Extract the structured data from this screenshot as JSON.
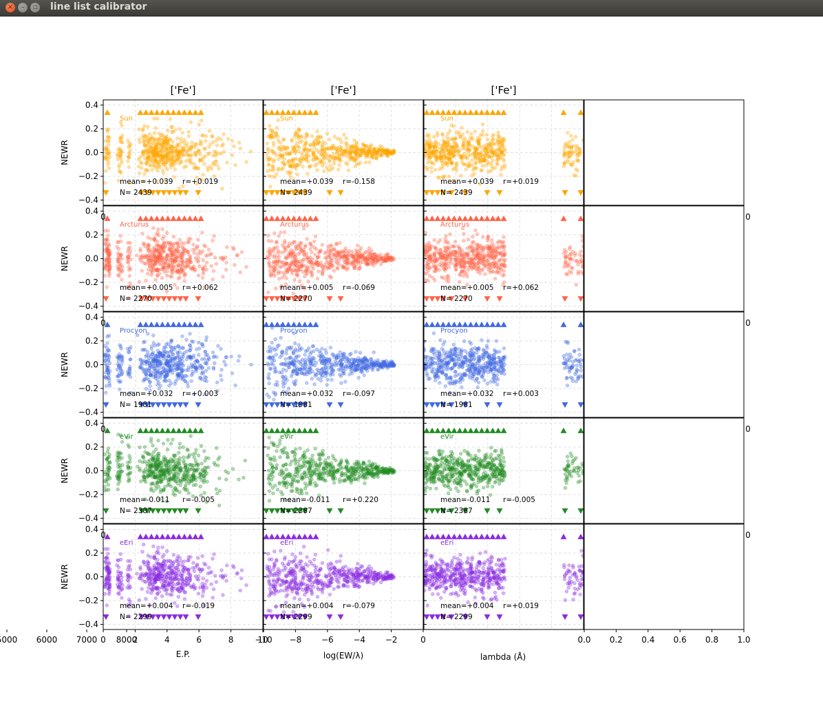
{
  "window": {
    "title": "line list calibrator",
    "close_glyph": "×",
    "min_glyph": "–",
    "max_glyph": "▫"
  },
  "columns": [
    {
      "title": "['Fe']",
      "xlabel": "E.P."
    },
    {
      "title": "['Fe']",
      "xlabel": "log(EW/λ)"
    },
    {
      "title": "['Fe']",
      "xlabel": "lambda (Å)"
    },
    {
      "title": "",
      "xlabel": ""
    }
  ],
  "ylabel": "NEWR",
  "x_ticks": {
    "ep": [
      "0",
      "2",
      "4",
      "6",
      "8",
      "10"
    ],
    "logew": [
      "−10",
      "−8",
      "−6",
      "−4",
      "−2",
      "0"
    ],
    "lambda": [
      "5000",
      "6000",
      "7000",
      "8000"
    ],
    "blank": [
      "0.0",
      "0.2",
      "0.4",
      "0.6",
      "0.8",
      "1.0"
    ]
  },
  "y_ticks": [
    "0.4",
    "0.2",
    "0.0",
    "−0.2",
    "−0.4"
  ],
  "stars": [
    {
      "name": "Sun",
      "color": "#ffa500",
      "stats": [
        {
          "mean": "mean=+0.039",
          "r": "r=+0.019",
          "n": "N= 2439"
        },
        {
          "mean": "mean=+0.039",
          "r": "r=-0.158",
          "n": "N= 2439"
        },
        {
          "mean": "mean=+0.039",
          "r": "r=+0.019",
          "n": "N= 2439"
        }
      ]
    },
    {
      "name": "Arcturus",
      "color": "#ff6347",
      "stats": [
        {
          "mean": "mean=+0.005",
          "r": "r=+0.062",
          "n": "N= 2270"
        },
        {
          "mean": "mean=+0.005",
          "r": "r=-0.069",
          "n": "N= 2270"
        },
        {
          "mean": "mean=+0.005",
          "r": "r=+0.062",
          "n": "N= 2270"
        }
      ]
    },
    {
      "name": "Procyon",
      "color": "#4169e1",
      "stats": [
        {
          "mean": "mean=+0.032",
          "r": "r=+0.003",
          "n": "N= 1981"
        },
        {
          "mean": "mean=+0.032",
          "r": "r=-0.097",
          "n": "N= 1981"
        },
        {
          "mean": "mean=+0.032",
          "r": "r=+0.003",
          "n": "N= 1981"
        }
      ]
    },
    {
      "name": "eVir",
      "color": "#228b22",
      "stats": [
        {
          "mean": "mean=-0.011",
          "r": "r=-0.005",
          "n": "N= 2387"
        },
        {
          "mean": "mean=-0.011",
          "r": "r=+0.220",
          "n": "N= 2387"
        },
        {
          "mean": "mean=-0.011",
          "r": "r=-0.005",
          "n": "N= 2387"
        }
      ]
    },
    {
      "name": "eEri",
      "color": "#8a2be2",
      "stats": [
        {
          "mean": "mean=+0.004",
          "r": "r=-0.019",
          "n": "N= 2299"
        },
        {
          "mean": "mean=+0.004",
          "r": "r=-0.079",
          "n": "N= 2299"
        },
        {
          "mean": "mean=+0.004",
          "r": "r=+0.019",
          "n": "N= 2299"
        }
      ]
    }
  ],
  "stray_tick_right": "0",
  "stray_tick_left": "0"
}
